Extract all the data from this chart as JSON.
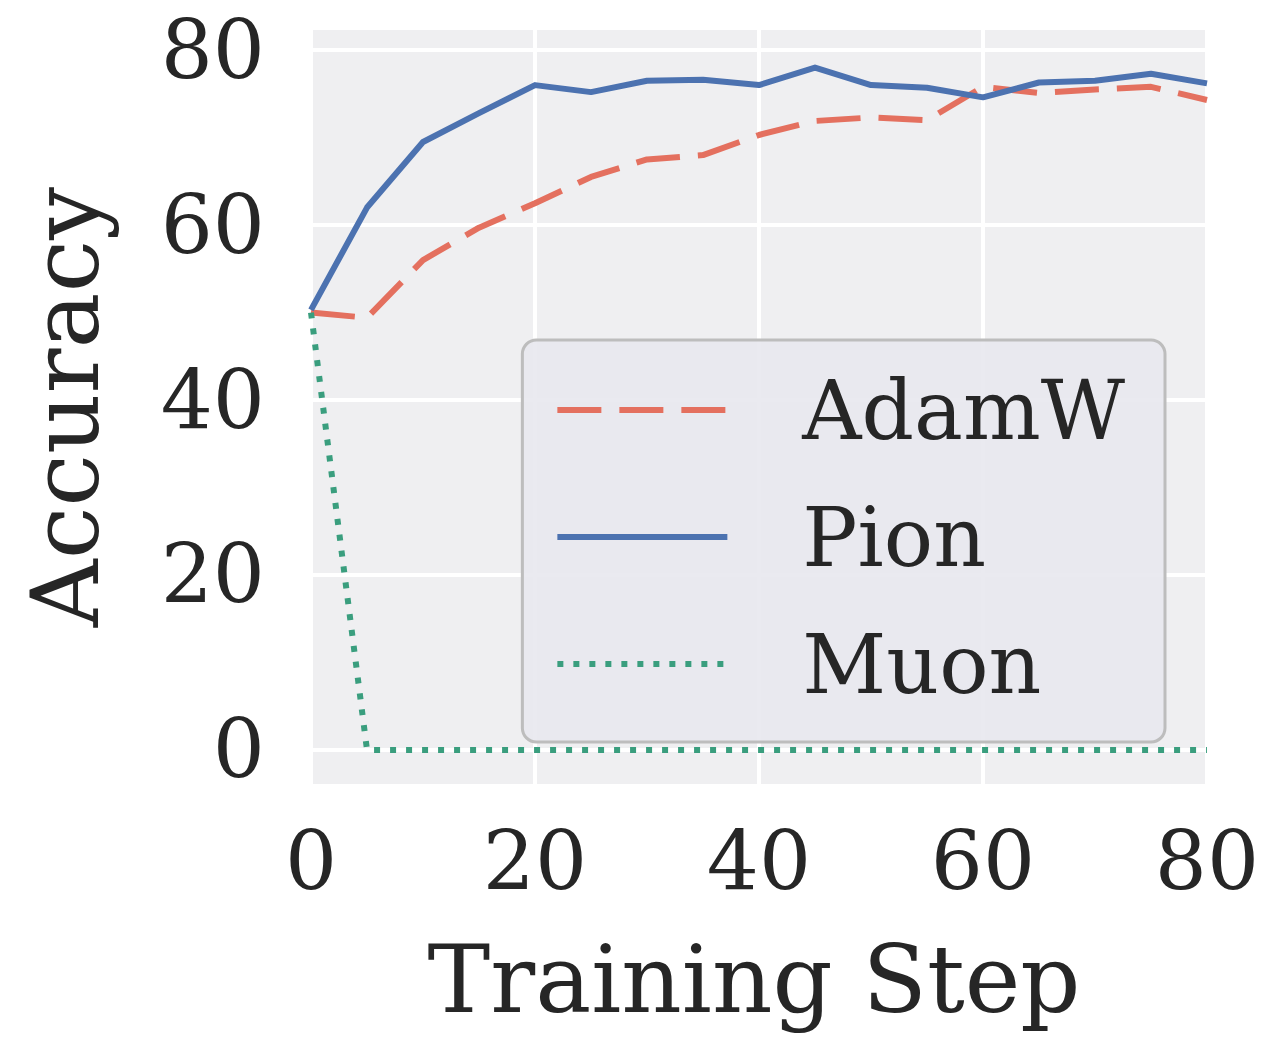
{
  "chart_data": {
    "type": "line",
    "xlabel": "Training Step",
    "ylabel": "Accuracy",
    "x": [
      0,
      5,
      10,
      15,
      20,
      25,
      30,
      35,
      40,
      45,
      50,
      55,
      60,
      65,
      70,
      75,
      80
    ],
    "xlim": [
      0,
      80
    ],
    "xticks": [
      0,
      20,
      40,
      60,
      80
    ],
    "ylim": [
      -3.9,
      82.3
    ],
    "yticks": [
      0,
      20,
      40,
      60,
      80
    ],
    "grid": true,
    "legend": "bottom right",
    "series": [
      {
        "name": "AdamW",
        "color": "#e4705f",
        "line_style": "dashed",
        "values": [
          50,
          49.4,
          56,
          59.7,
          62.5,
          65.5,
          67.5,
          68,
          70.3,
          71.9,
          72.3,
          72,
          75.8,
          75.1,
          75.5,
          75.8,
          74.3
        ]
      },
      {
        "name": "Pion",
        "color": "#4c72b0",
        "line_style": "solid",
        "values": [
          50.3,
          62,
          69.5,
          72.8,
          76,
          75.2,
          76.5,
          76.6,
          76,
          78,
          76,
          75.7,
          74.6,
          76.3,
          76.5,
          77.3,
          76.2
        ]
      },
      {
        "name": "Muon",
        "color": "#3a9e7e",
        "line_style": "dotted",
        "values": [
          50,
          0,
          0,
          0,
          0,
          0,
          0,
          0,
          0,
          0,
          0,
          0,
          0,
          0,
          0,
          0,
          0
        ]
      }
    ]
  }
}
